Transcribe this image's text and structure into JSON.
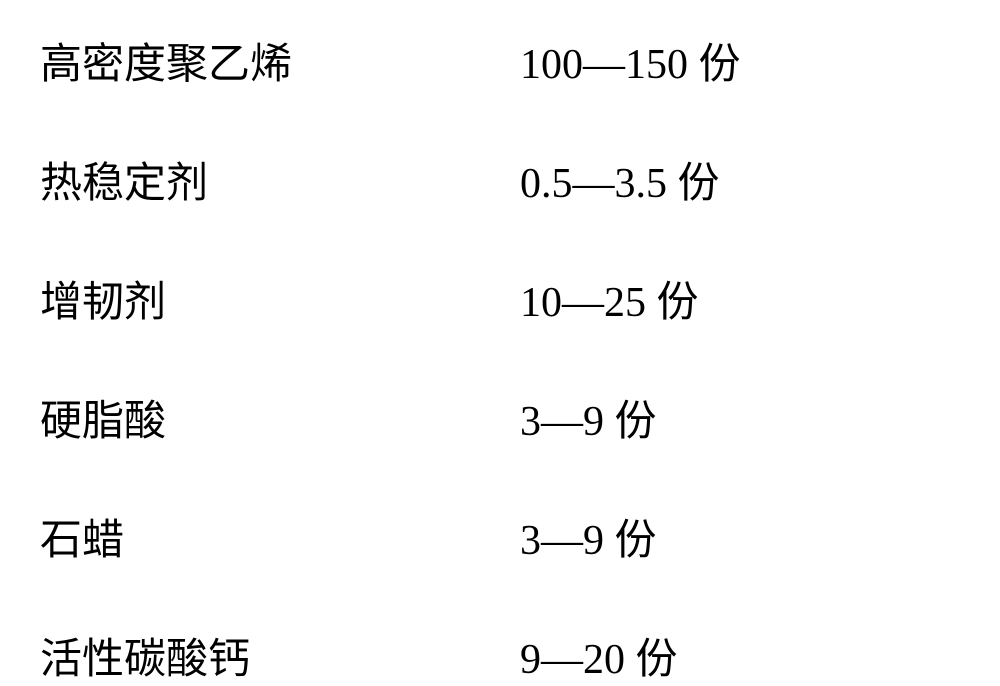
{
  "table": {
    "font_size": 42,
    "font_weight": "normal",
    "text_color": "#000000",
    "background_color": "#ffffff",
    "line_spacing": 58,
    "label_column_width": 480,
    "rows": [
      {
        "label": "高密度聚乙烯",
        "value": "100—150 份"
      },
      {
        "label": "热稳定剂",
        "value": "0.5—3.5 份"
      },
      {
        "label": "增韧剂",
        "value": "10—25 份"
      },
      {
        "label": "硬脂酸",
        "value": "3—9 份"
      },
      {
        "label": "石蜡",
        "value": "3—9 份"
      },
      {
        "label": "活性碳酸钙",
        "value": "9—20 份"
      }
    ]
  }
}
